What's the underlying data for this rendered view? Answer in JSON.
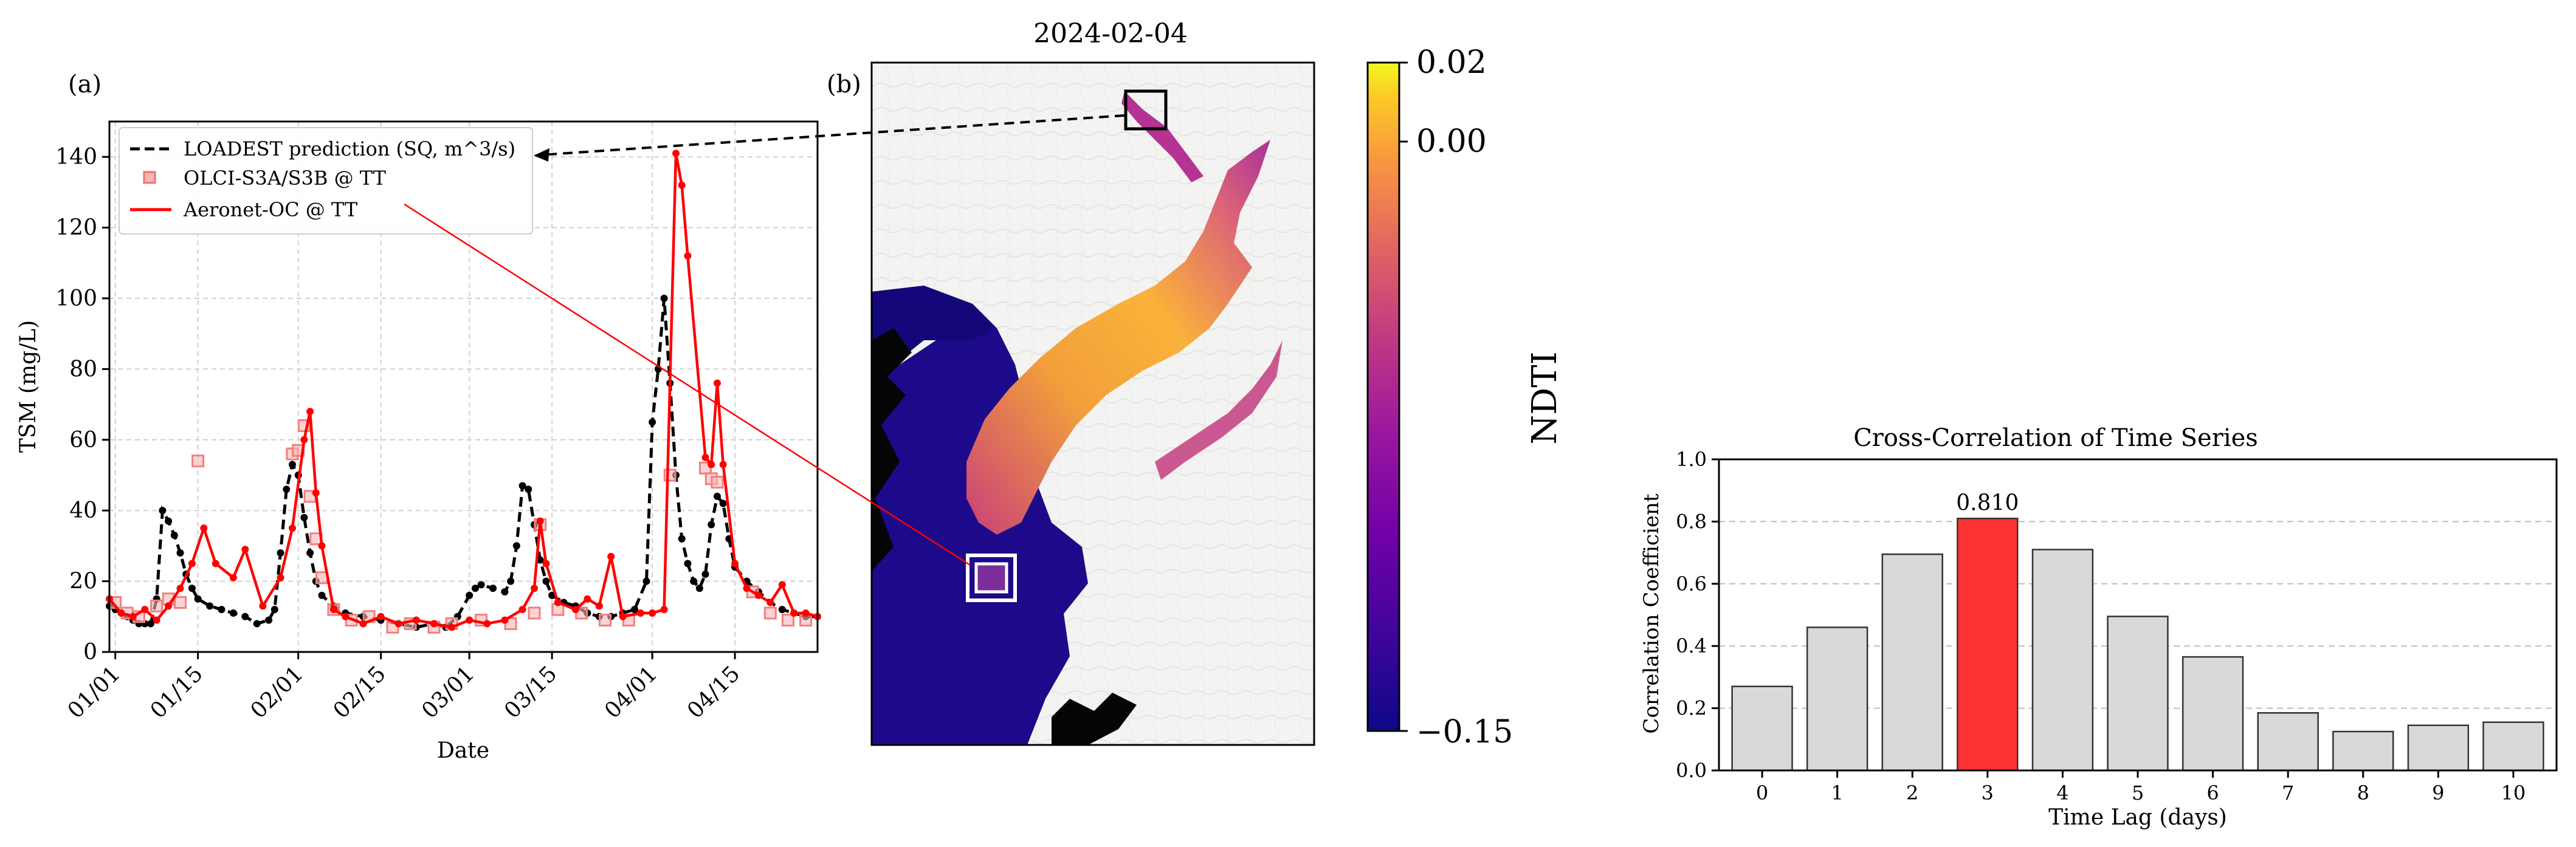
{
  "chart_data": [
    {
      "panel_label": "(a)",
      "type": "line",
      "xlabel": "Date",
      "ylabel": "TSM (mg/L)",
      "x_ticks": [
        "01/01",
        "01/15",
        "02/01",
        "02/15",
        "03/01",
        "03/15",
        "04/01",
        "04/15"
      ],
      "x_tick_values": [
        "2024-01-01",
        "2024-01-15",
        "2024-02-01",
        "2024-02-15",
        "2024-03-01",
        "2024-03-15",
        "2024-04-01",
        "2024-04-15"
      ],
      "xlim": [
        "2023-12-31",
        "2024-04-29"
      ],
      "y_ticks": [
        "0",
        "20",
        "40",
        "60",
        "80",
        "100",
        "120",
        "140"
      ],
      "ylim": [
        0,
        150
      ],
      "grid": true,
      "legend_position": "top-left",
      "series": [
        {
          "name": "LOADEST prediction (SQ, m^3/s)",
          "style": "dashed",
          "color": "#000000",
          "marker": "dot",
          "points": [
            [
              "2023-12-31",
              13
            ],
            [
              "2024-01-01",
              12
            ],
            [
              "2024-01-02",
              11
            ],
            [
              "2024-01-03",
              10
            ],
            [
              "2024-01-04",
              9
            ],
            [
              "2024-01-05",
              8
            ],
            [
              "2024-01-06",
              8
            ],
            [
              "2024-01-07",
              8
            ],
            [
              "2024-01-08",
              15
            ],
            [
              "2024-01-09",
              40
            ],
            [
              "2024-01-10",
              37
            ],
            [
              "2024-01-11",
              33
            ],
            [
              "2024-01-12",
              28
            ],
            [
              "2024-01-13",
              22
            ],
            [
              "2024-01-14",
              18
            ],
            [
              "2024-01-15",
              15
            ],
            [
              "2024-01-17",
              13
            ],
            [
              "2024-01-19",
              12
            ],
            [
              "2024-01-21",
              11
            ],
            [
              "2024-01-23",
              10
            ],
            [
              "2024-01-25",
              8
            ],
            [
              "2024-01-27",
              9
            ],
            [
              "2024-01-28",
              12
            ],
            [
              "2024-01-29",
              28
            ],
            [
              "2024-01-30",
              46
            ],
            [
              "2024-01-31",
              53
            ],
            [
              "2024-02-01",
              50
            ],
            [
              "2024-02-02",
              38
            ],
            [
              "2024-02-03",
              28
            ],
            [
              "2024-02-04",
              20
            ],
            [
              "2024-02-05",
              16
            ],
            [
              "2024-02-07",
              13
            ],
            [
              "2024-02-09",
              11
            ],
            [
              "2024-02-12",
              10
            ],
            [
              "2024-02-15",
              9
            ],
            [
              "2024-02-18",
              8
            ],
            [
              "2024-02-21",
              7
            ],
            [
              "2024-02-24",
              8
            ],
            [
              "2024-02-26",
              7
            ],
            [
              "2024-02-28",
              10
            ],
            [
              "2024-03-01",
              16
            ],
            [
              "2024-03-02",
              18
            ],
            [
              "2024-03-03",
              19
            ],
            [
              "2024-03-05",
              18
            ],
            [
              "2024-03-07",
              17
            ],
            [
              "2024-03-08",
              20
            ],
            [
              "2024-03-09",
              30
            ],
            [
              "2024-03-10",
              47
            ],
            [
              "2024-03-11",
              46
            ],
            [
              "2024-03-12",
              36
            ],
            [
              "2024-03-13",
              26
            ],
            [
              "2024-03-14",
              20
            ],
            [
              "2024-03-15",
              16
            ],
            [
              "2024-03-17",
              14
            ],
            [
              "2024-03-19",
              13
            ],
            [
              "2024-03-21",
              11
            ],
            [
              "2024-03-23",
              10
            ],
            [
              "2024-03-25",
              10
            ],
            [
              "2024-03-27",
              11
            ],
            [
              "2024-03-29",
              12
            ],
            [
              "2024-03-31",
              20
            ],
            [
              "2024-04-01",
              65
            ],
            [
              "2024-04-02",
              80
            ],
            [
              "2024-04-03",
              100
            ],
            [
              "2024-04-04",
              76
            ],
            [
              "2024-04-05",
              50
            ],
            [
              "2024-04-06",
              32
            ],
            [
              "2024-04-07",
              25
            ],
            [
              "2024-04-08",
              20
            ],
            [
              "2024-04-09",
              18
            ],
            [
              "2024-04-10",
              22
            ],
            [
              "2024-04-11",
              36
            ],
            [
              "2024-04-12",
              44
            ],
            [
              "2024-04-13",
              42
            ],
            [
              "2024-04-14",
              32
            ],
            [
              "2024-04-15",
              24
            ],
            [
              "2024-04-17",
              20
            ],
            [
              "2024-04-19",
              17
            ],
            [
              "2024-04-21",
              14
            ],
            [
              "2024-04-23",
              12
            ],
            [
              "2024-04-25",
              11
            ],
            [
              "2024-04-27",
              10
            ],
            [
              "2024-04-29",
              10
            ]
          ]
        },
        {
          "name": "OLCI-S3A/S3B @ TT",
          "style": "markers",
          "color": "#f08080",
          "marker": "square",
          "points": [
            [
              "2024-01-01",
              14
            ],
            [
              "2024-01-03",
              11
            ],
            [
              "2024-01-05",
              10
            ],
            [
              "2024-01-08",
              13
            ],
            [
              "2024-01-10",
              15
            ],
            [
              "2024-01-12",
              14
            ],
            [
              "2024-01-15",
              54
            ],
            [
              "2024-01-31",
              56
            ],
            [
              "2024-02-01",
              57
            ],
            [
              "2024-02-02",
              64
            ],
            [
              "2024-02-03",
              44
            ],
            [
              "2024-02-04",
              32
            ],
            [
              "2024-02-05",
              21
            ],
            [
              "2024-02-07",
              12
            ],
            [
              "2024-02-10",
              9
            ],
            [
              "2024-02-13",
              10
            ],
            [
              "2024-02-17",
              7
            ],
            [
              "2024-02-20",
              8
            ],
            [
              "2024-02-24",
              7
            ],
            [
              "2024-02-27",
              8
            ],
            [
              "2024-03-03",
              9
            ],
            [
              "2024-03-08",
              8
            ],
            [
              "2024-03-12",
              11
            ],
            [
              "2024-03-13",
              36
            ],
            [
              "2024-03-16",
              12
            ],
            [
              "2024-03-20",
              11
            ],
            [
              "2024-03-24",
              9
            ],
            [
              "2024-03-28",
              9
            ],
            [
              "2024-04-04",
              50
            ],
            [
              "2024-04-10",
              52
            ],
            [
              "2024-04-11",
              49
            ],
            [
              "2024-04-12",
              48
            ],
            [
              "2024-04-18",
              17
            ],
            [
              "2024-04-21",
              11
            ],
            [
              "2024-04-24",
              9
            ],
            [
              "2024-04-27",
              9
            ]
          ]
        },
        {
          "name": "Aeronet-OC @ TT",
          "style": "solid",
          "color": "#ff0000",
          "marker": "dot",
          "points": [
            [
              "2023-12-31",
              15
            ],
            [
              "2024-01-02",
              11
            ],
            [
              "2024-01-04",
              10
            ],
            [
              "2024-01-06",
              12
            ],
            [
              "2024-01-08",
              9
            ],
            [
              "2024-01-10",
              13
            ],
            [
              "2024-01-12",
              18
            ],
            [
              "2024-01-14",
              25
            ],
            [
              "2024-01-16",
              35
            ],
            [
              "2024-01-18",
              25
            ],
            [
              "2024-01-21",
              21
            ],
            [
              "2024-01-23",
              29
            ],
            [
              "2024-01-26",
              13
            ],
            [
              "2024-01-29",
              21
            ],
            [
              "2024-01-31",
              35
            ],
            [
              "2024-02-02",
              60
            ],
            [
              "2024-02-03",
              68
            ],
            [
              "2024-02-04",
              45
            ],
            [
              "2024-02-05",
              30
            ],
            [
              "2024-02-07",
              12
            ],
            [
              "2024-02-09",
              10
            ],
            [
              "2024-02-12",
              8
            ],
            [
              "2024-02-15",
              10
            ],
            [
              "2024-02-18",
              8
            ],
            [
              "2024-02-21",
              9
            ],
            [
              "2024-02-24",
              8
            ],
            [
              "2024-02-27",
              7
            ],
            [
              "2024-03-01",
              9
            ],
            [
              "2024-03-04",
              8
            ],
            [
              "2024-03-07",
              9
            ],
            [
              "2024-03-10",
              12
            ],
            [
              "2024-03-12",
              18
            ],
            [
              "2024-03-13",
              37
            ],
            [
              "2024-03-14",
              25
            ],
            [
              "2024-03-16",
              14
            ],
            [
              "2024-03-19",
              12
            ],
            [
              "2024-03-21",
              15
            ],
            [
              "2024-03-23",
              13
            ],
            [
              "2024-03-25",
              27
            ],
            [
              "2024-03-27",
              10
            ],
            [
              "2024-03-30",
              11
            ],
            [
              "2024-04-01",
              11
            ],
            [
              "2024-04-03",
              12
            ],
            [
              "2024-04-05",
              141
            ],
            [
              "2024-04-06",
              132
            ],
            [
              "2024-04-07",
              112
            ],
            [
              "2024-04-10",
              55
            ],
            [
              "2024-04-11",
              53
            ],
            [
              "2024-04-12",
              76
            ],
            [
              "2024-04-13",
              53
            ],
            [
              "2024-04-15",
              25
            ],
            [
              "2024-04-17",
              18
            ],
            [
              "2024-04-19",
              16
            ],
            [
              "2024-04-21",
              14
            ],
            [
              "2024-04-23",
              19
            ],
            [
              "2024-04-25",
              11
            ],
            [
              "2024-04-27",
              11
            ],
            [
              "2024-04-29",
              10
            ]
          ]
        }
      ]
    },
    {
      "panel_label": "(b)",
      "type": "heatmap",
      "title": "2024-02-04",
      "colorbar_label": "NDTI",
      "colorbar_ticks": [
        "0.02",
        "0.00",
        "−0.15"
      ],
      "colorbar_tick_values": [
        0.02,
        0.0,
        -0.15
      ],
      "colorbar_range": [
        -0.15,
        0.02
      ],
      "colormap": "plasma"
    },
    {
      "type": "bar",
      "title": "Cross-Correlation of Time Series",
      "xlabel": "Time Lag (days)",
      "ylabel": "Correlation Coefficient",
      "categories": [
        "0",
        "1",
        "2",
        "3",
        "4",
        "5",
        "6",
        "7",
        "8",
        "9",
        "10"
      ],
      "values": [
        0.27,
        0.46,
        0.695,
        0.81,
        0.71,
        0.495,
        0.365,
        0.185,
        0.125,
        0.145,
        0.155
      ],
      "ylim": [
        0,
        1.0
      ],
      "y_ticks": [
        "0.0",
        "0.2",
        "0.4",
        "0.6",
        "0.8",
        "1.0"
      ],
      "grid": "y-dashed",
      "highlight_index": 3,
      "highlight_label": "0.810",
      "colors": {
        "bar": "#d9d9d9",
        "highlight": "#ff3333",
        "edge": "#333333"
      }
    }
  ]
}
